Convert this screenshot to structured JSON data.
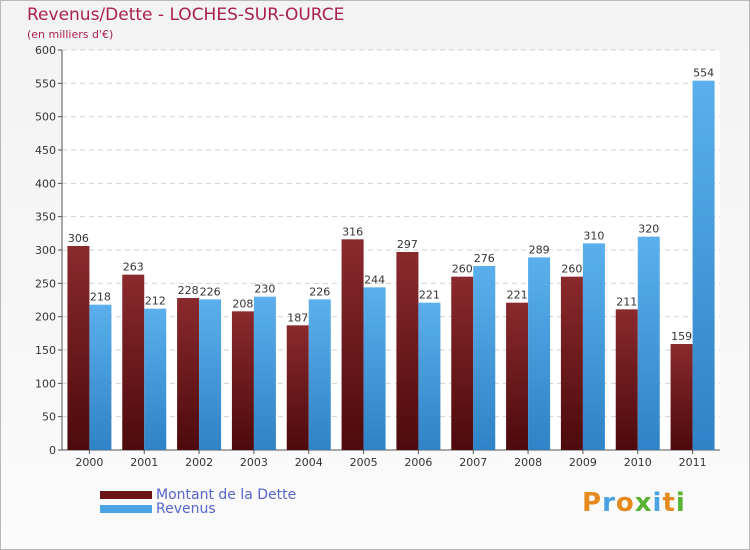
{
  "chart_data": {
    "type": "bar",
    "title": "Revenus/Dette - LOCHES-SUR-OURCE",
    "subtitle": "(en milliers d'€)",
    "categories": [
      "2000",
      "2001",
      "2002",
      "2003",
      "2004",
      "2005",
      "2006",
      "2007",
      "2008",
      "2009",
      "2010",
      "2011"
    ],
    "series": [
      {
        "name": "Montant de la Dette",
        "color": "#7a1f22",
        "values": [
          306,
          263,
          228,
          208,
          187,
          316,
          297,
          260,
          221,
          260,
          211,
          159
        ]
      },
      {
        "name": "Revenus",
        "color": "#4aa3e3",
        "values": [
          218,
          212,
          226,
          230,
          226,
          244,
          221,
          276,
          289,
          310,
          320,
          554
        ]
      }
    ],
    "ylim": [
      0,
      600
    ],
    "yticks": [
      0,
      50,
      100,
      150,
      200,
      250,
      300,
      350,
      400,
      450,
      500,
      550,
      600
    ],
    "grid": true,
    "legend": "bottom-left"
  },
  "logo": {
    "text": "Proxiti"
  }
}
